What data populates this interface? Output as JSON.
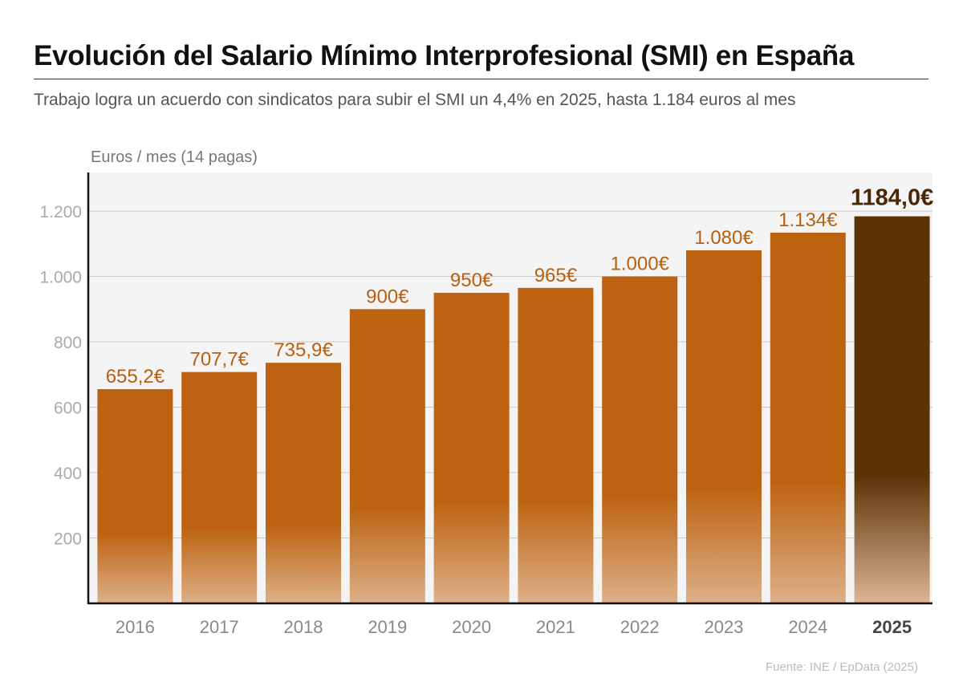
{
  "title": "Evolución del Salario Mínimo Interprofesional (SMI) en España",
  "subtitle": "Trabajo logra un acuerdo con sindicatos para subir el SMI un 4,4% en 2025, hasta 1.184 euros al mes",
  "source": "Fuente: INE / EpData (2025)",
  "chart_data": {
    "type": "bar",
    "title": "Evolución del Salario Mínimo Interprofesional (SMI) en España",
    "ylabel": "Euros / mes (14 pagas)",
    "xlabel": "",
    "categories": [
      "2016",
      "2017",
      "2018",
      "2019",
      "2020",
      "2021",
      "2022",
      "2023",
      "2024",
      "2025"
    ],
    "values": [
      655.2,
      707.7,
      735.9,
      900,
      950,
      965,
      1000,
      1080,
      1134,
      1184
    ],
    "data_labels": [
      "655,2€",
      "707,7€",
      "735,9€",
      "900€",
      "950€",
      "965€",
      "1.000€",
      "1.080€",
      "1.134€",
      "1184,0€"
    ],
    "highlight_index": 9,
    "ylim": [
      0,
      1318
    ],
    "yticks": [
      200,
      400,
      600,
      800,
      1000,
      1200
    ],
    "ytick_labels": [
      "200",
      "400",
      "600",
      "800",
      "1.000",
      "1.200"
    ],
    "grid": true,
    "colors": {
      "bar": "#bc6210",
      "bar_fade": "#ddb088",
      "highlight": "#5c3207",
      "highlight_fade": "#dcb592",
      "label": "#b85f10",
      "highlight_label": "#4a2807",
      "plot_bg": "#f4f4f4"
    }
  }
}
